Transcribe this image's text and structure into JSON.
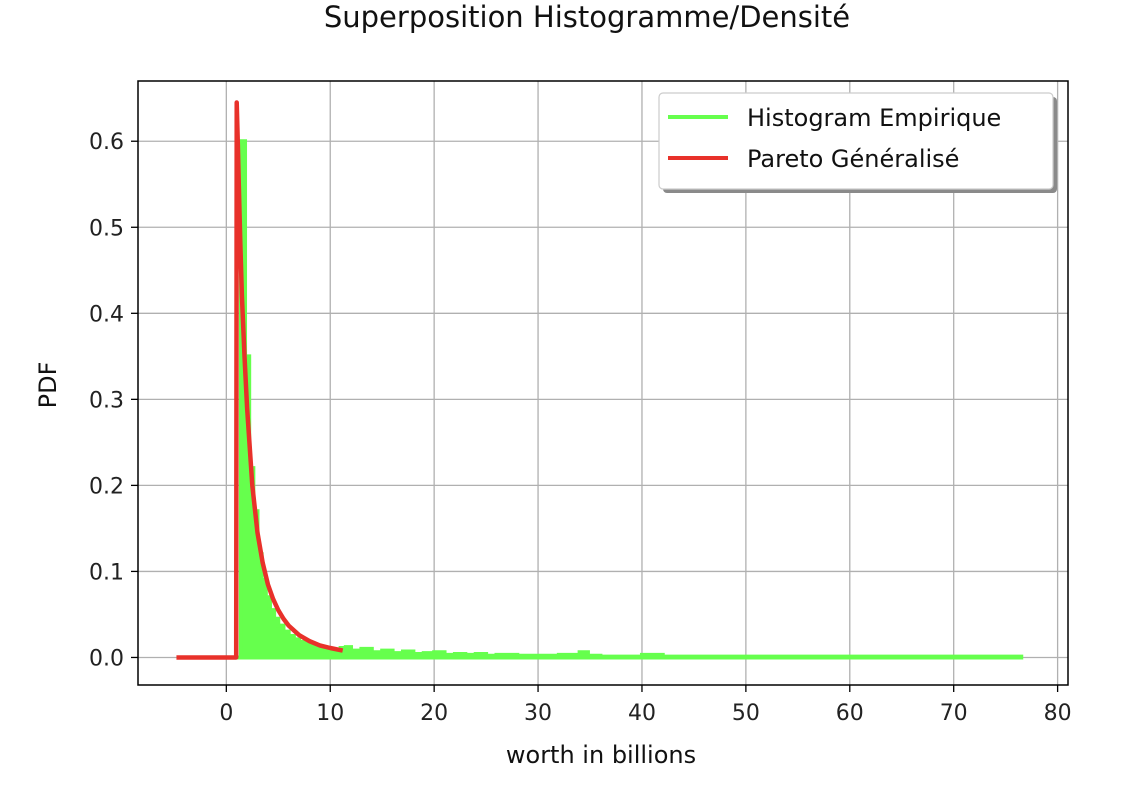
{
  "chart_data": {
    "type": "line",
    "title": "Superposition Histogramme/Densité",
    "xlabel": "worth in billions",
    "ylabel": "PDF",
    "xlim": [
      -8.5,
      81
    ],
    "ylim": [
      -0.032,
      0.67
    ],
    "grid": true,
    "legend_position": "top-right",
    "x_ticks": [
      0,
      10,
      20,
      30,
      40,
      50,
      60,
      70,
      80
    ],
    "y_ticks": [
      0.0,
      0.1,
      0.2,
      0.3,
      0.4,
      0.5,
      0.6
    ],
    "y_tick_labels": [
      "0.0",
      "0.1",
      "0.2",
      "0.3",
      "0.4",
      "0.5",
      "0.6"
    ],
    "series": [
      {
        "name": "Histogram Empirique",
        "kind": "histogram",
        "color": "#66ff4d",
        "x": [
          1.0,
          1.4,
          1.8,
          2.2,
          2.6,
          3.0,
          3.4,
          3.8,
          4.2,
          4.6,
          5.0,
          5.5,
          6.0,
          6.5,
          7.0,
          7.5,
          8.0,
          8.5,
          9.0,
          9.5,
          10.0,
          10.5,
          11.0,
          11.5,
          12.0,
          13.0,
          14.0,
          15.0,
          16.0,
          17.0,
          18.0,
          19.0,
          20.0,
          21.0,
          22.0,
          23.0,
          24.0,
          25.0,
          26.0,
          28.0,
          30.0,
          32.0,
          34.0,
          34.8,
          36.0,
          38.0,
          40.0,
          42.0,
          76.5
        ],
        "y": [
          0.0,
          0.6,
          0.35,
          0.22,
          0.17,
          0.12,
          0.09,
          0.07,
          0.055,
          0.045,
          0.037,
          0.03,
          0.025,
          0.021,
          0.018,
          0.016,
          0.014,
          0.012,
          0.011,
          0.01,
          0.009,
          0.008,
          0.011,
          0.012,
          0.008,
          0.01,
          0.006,
          0.008,
          0.005,
          0.007,
          0.004,
          0.005,
          0.006,
          0.003,
          0.004,
          0.003,
          0.004,
          0.002,
          0.003,
          0.002,
          0.002,
          0.003,
          0.006,
          0.002,
          0.001,
          0.001,
          0.003,
          0.001,
          0.0
        ]
      },
      {
        "name": "Pareto Généralisé",
        "kind": "line",
        "color": "#e8312a",
        "x": [
          -4.8,
          0.95,
          1.0,
          1.1,
          1.2,
          1.35,
          1.5,
          1.75,
          2.0,
          2.5,
          3.0,
          3.5,
          4.0,
          4.5,
          5.0,
          5.5,
          6.0,
          7.0,
          8.0,
          9.0,
          10.0,
          11.2
        ],
        "y": [
          0.0,
          0.0,
          0.645,
          0.6,
          0.55,
          0.48,
          0.42,
          0.35,
          0.29,
          0.2,
          0.145,
          0.11,
          0.085,
          0.068,
          0.055,
          0.045,
          0.037,
          0.026,
          0.019,
          0.014,
          0.011,
          0.008
        ]
      }
    ]
  }
}
